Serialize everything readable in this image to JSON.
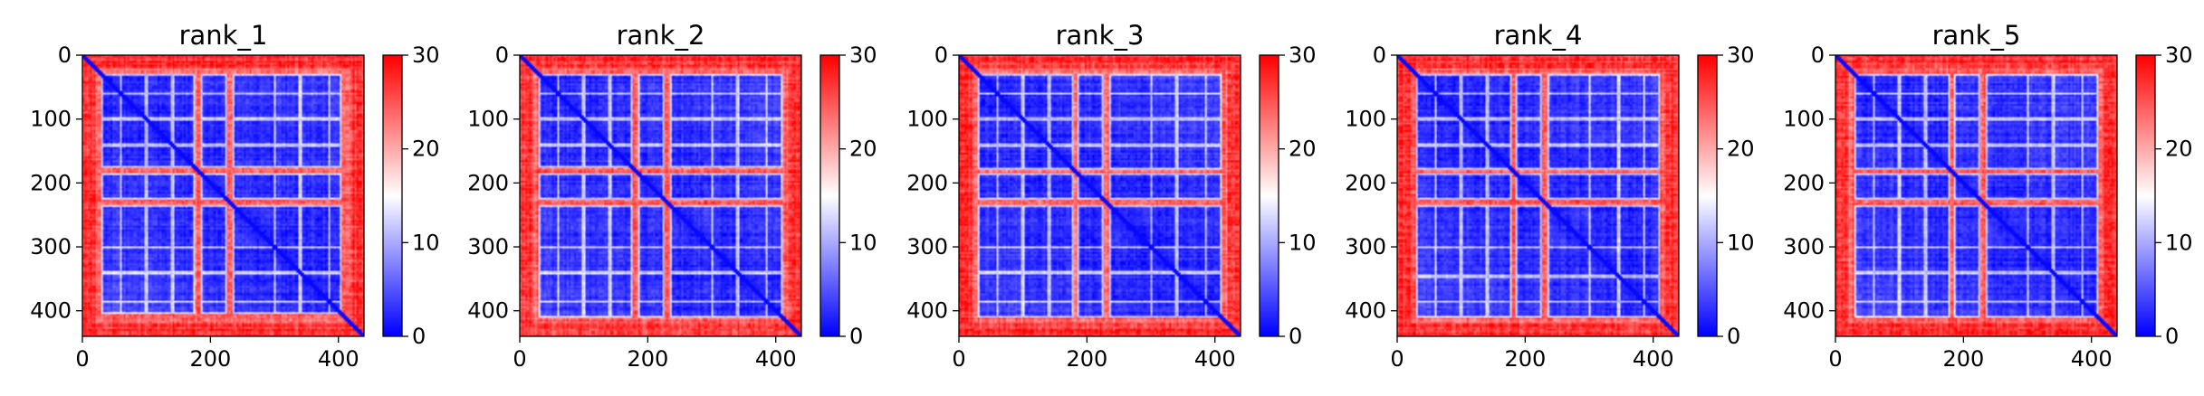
{
  "chart_data": [
    {
      "type": "heatmap",
      "title": "rank_1",
      "xlabel": "",
      "ylabel": "",
      "n": 441,
      "xlim": [
        0,
        440
      ],
      "ylim": [
        440,
        0
      ],
      "xticks": [
        0,
        200,
        400
      ],
      "yticks": [
        0,
        100,
        200,
        300,
        400
      ],
      "colorbar": {
        "min": 0,
        "max": 30,
        "ticks": [
          0,
          10,
          20,
          30
        ],
        "colors": [
          "#0000ff",
          "#ffffff",
          "#ff0000"
        ]
      },
      "domains": [
        [
          30,
          60
        ],
        [
          60,
          100
        ],
        [
          100,
          140
        ],
        [
          140,
          175
        ],
        [
          185,
          225
        ],
        [
          235,
          300
        ],
        [
          300,
          340
        ],
        [
          340,
          385
        ],
        [
          385,
          405
        ]
      ]
    },
    {
      "type": "heatmap",
      "title": "rank_2",
      "xlabel": "",
      "ylabel": "",
      "n": 441,
      "xlim": [
        0,
        440
      ],
      "ylim": [
        440,
        0
      ],
      "xticks": [
        0,
        200,
        400
      ],
      "yticks": [
        0,
        100,
        200,
        300,
        400
      ],
      "colorbar": {
        "min": 0,
        "max": 30,
        "ticks": [
          0,
          10,
          20,
          30
        ],
        "colors": [
          "#0000ff",
          "#ffffff",
          "#ff0000"
        ]
      },
      "domains": [
        [
          30,
          60
        ],
        [
          60,
          100
        ],
        [
          100,
          140
        ],
        [
          140,
          175
        ],
        [
          185,
          225
        ],
        [
          235,
          300
        ],
        [
          300,
          340
        ],
        [
          340,
          385
        ],
        [
          385,
          410
        ]
      ]
    },
    {
      "type": "heatmap",
      "title": "rank_3",
      "xlabel": "",
      "ylabel": "",
      "n": 441,
      "xlim": [
        0,
        440
      ],
      "ylim": [
        440,
        0
      ],
      "xticks": [
        0,
        200,
        400
      ],
      "yticks": [
        0,
        100,
        200,
        300,
        400
      ],
      "colorbar": {
        "min": 0,
        "max": 30,
        "ticks": [
          0,
          10,
          20,
          30
        ],
        "colors": [
          "#0000ff",
          "#ffffff",
          "#ff0000"
        ]
      },
      "domains": [
        [
          30,
          60
        ],
        [
          60,
          100
        ],
        [
          100,
          140
        ],
        [
          140,
          178
        ],
        [
          185,
          225
        ],
        [
          235,
          300
        ],
        [
          300,
          340
        ],
        [
          340,
          385
        ],
        [
          385,
          410
        ]
      ]
    },
    {
      "type": "heatmap",
      "title": "rank_4",
      "xlabel": "",
      "ylabel": "",
      "n": 441,
      "xlim": [
        0,
        440
      ],
      "ylim": [
        440,
        0
      ],
      "xticks": [
        0,
        200,
        400
      ],
      "yticks": [
        0,
        100,
        200,
        300,
        400
      ],
      "colorbar": {
        "min": 0,
        "max": 30,
        "ticks": [
          0,
          10,
          20,
          30
        ],
        "colors": [
          "#0000ff",
          "#ffffff",
          "#ff0000"
        ]
      },
      "domains": [
        [
          30,
          60
        ],
        [
          60,
          100
        ],
        [
          100,
          140
        ],
        [
          140,
          178
        ],
        [
          185,
          225
        ],
        [
          235,
          300
        ],
        [
          300,
          345
        ],
        [
          345,
          385
        ],
        [
          385,
          410
        ]
      ]
    },
    {
      "type": "heatmap",
      "title": "rank_5",
      "xlabel": "",
      "ylabel": "",
      "n": 441,
      "xlim": [
        0,
        440
      ],
      "ylim": [
        440,
        0
      ],
      "xticks": [
        0,
        200,
        400
      ],
      "yticks": [
        0,
        100,
        200,
        300,
        400
      ],
      "colorbar": {
        "min": 0,
        "max": 30,
        "ticks": [
          0,
          10,
          20,
          30
        ],
        "colors": [
          "#0000ff",
          "#ffffff",
          "#ff0000"
        ]
      },
      "domains": [
        [
          30,
          60
        ],
        [
          60,
          100
        ],
        [
          100,
          140
        ],
        [
          140,
          178
        ],
        [
          185,
          225
        ],
        [
          235,
          300
        ],
        [
          300,
          340
        ],
        [
          340,
          385
        ],
        [
          385,
          410
        ]
      ]
    }
  ]
}
